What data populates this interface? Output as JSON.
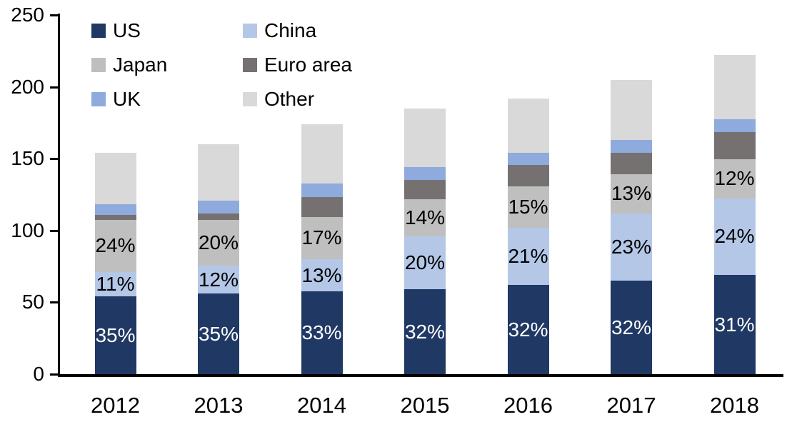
{
  "chart_data": {
    "type": "bar",
    "stacked": true,
    "title": "",
    "xlabel": "",
    "ylabel": "",
    "categories": [
      "2012",
      "2013",
      "2014",
      "2015",
      "2016",
      "2017",
      "2018"
    ],
    "series": [
      {
        "name": "US",
        "color": "#1f3864",
        "values": [
          54,
          56,
          57.5,
          59,
          62,
          65,
          69
        ]
      },
      {
        "name": "China",
        "color": "#b4c7e7",
        "values": [
          17,
          19.5,
          22.5,
          37,
          40,
          47,
          53.5
        ]
      },
      {
        "name": "Japan",
        "color": "#bfbfbf",
        "values": [
          36.5,
          32,
          29.5,
          26,
          28.5,
          27,
          27
        ]
      },
      {
        "name": "Euro area",
        "color": "#767171",
        "values": [
          3.5,
          4.5,
          14,
          13,
          15,
          15,
          19
        ]
      },
      {
        "name": "UK",
        "color": "#8faadc",
        "values": [
          7.5,
          9,
          9,
          9,
          8.5,
          9,
          9
        ]
      },
      {
        "name": "Other",
        "color": "#d9d9d9",
        "values": [
          35.5,
          39,
          41.5,
          41,
          38,
          42,
          44.5
        ]
      }
    ],
    "totals": [
      154,
      160,
      174,
      185,
      192,
      205,
      222
    ],
    "segment_labels": [
      {
        "series": "US",
        "text_color": "#ffffff",
        "values": [
          "35%",
          "35%",
          "33%",
          "32%",
          "32%",
          "32%",
          "31%"
        ]
      },
      {
        "series": "China",
        "text_color": "#000000",
        "values": [
          "11%",
          "12%",
          "13%",
          "20%",
          "21%",
          "23%",
          "24%"
        ]
      },
      {
        "series": "Japan",
        "text_color": "#000000",
        "values": [
          "24%",
          "20%",
          "17%",
          "14%",
          "15%",
          "13%",
          "12%"
        ]
      }
    ],
    "ylim": [
      0,
      250
    ],
    "ytick_step": 50,
    "yticks": [
      "0",
      "50",
      "100",
      "150",
      "200",
      "250"
    ],
    "grid": false,
    "legend_position": "top-left",
    "legend_order": [
      "US",
      "China",
      "Japan",
      "Euro area",
      "UK",
      "Other"
    ],
    "axis_color": "#000000",
    "background_color": "#ffffff"
  }
}
